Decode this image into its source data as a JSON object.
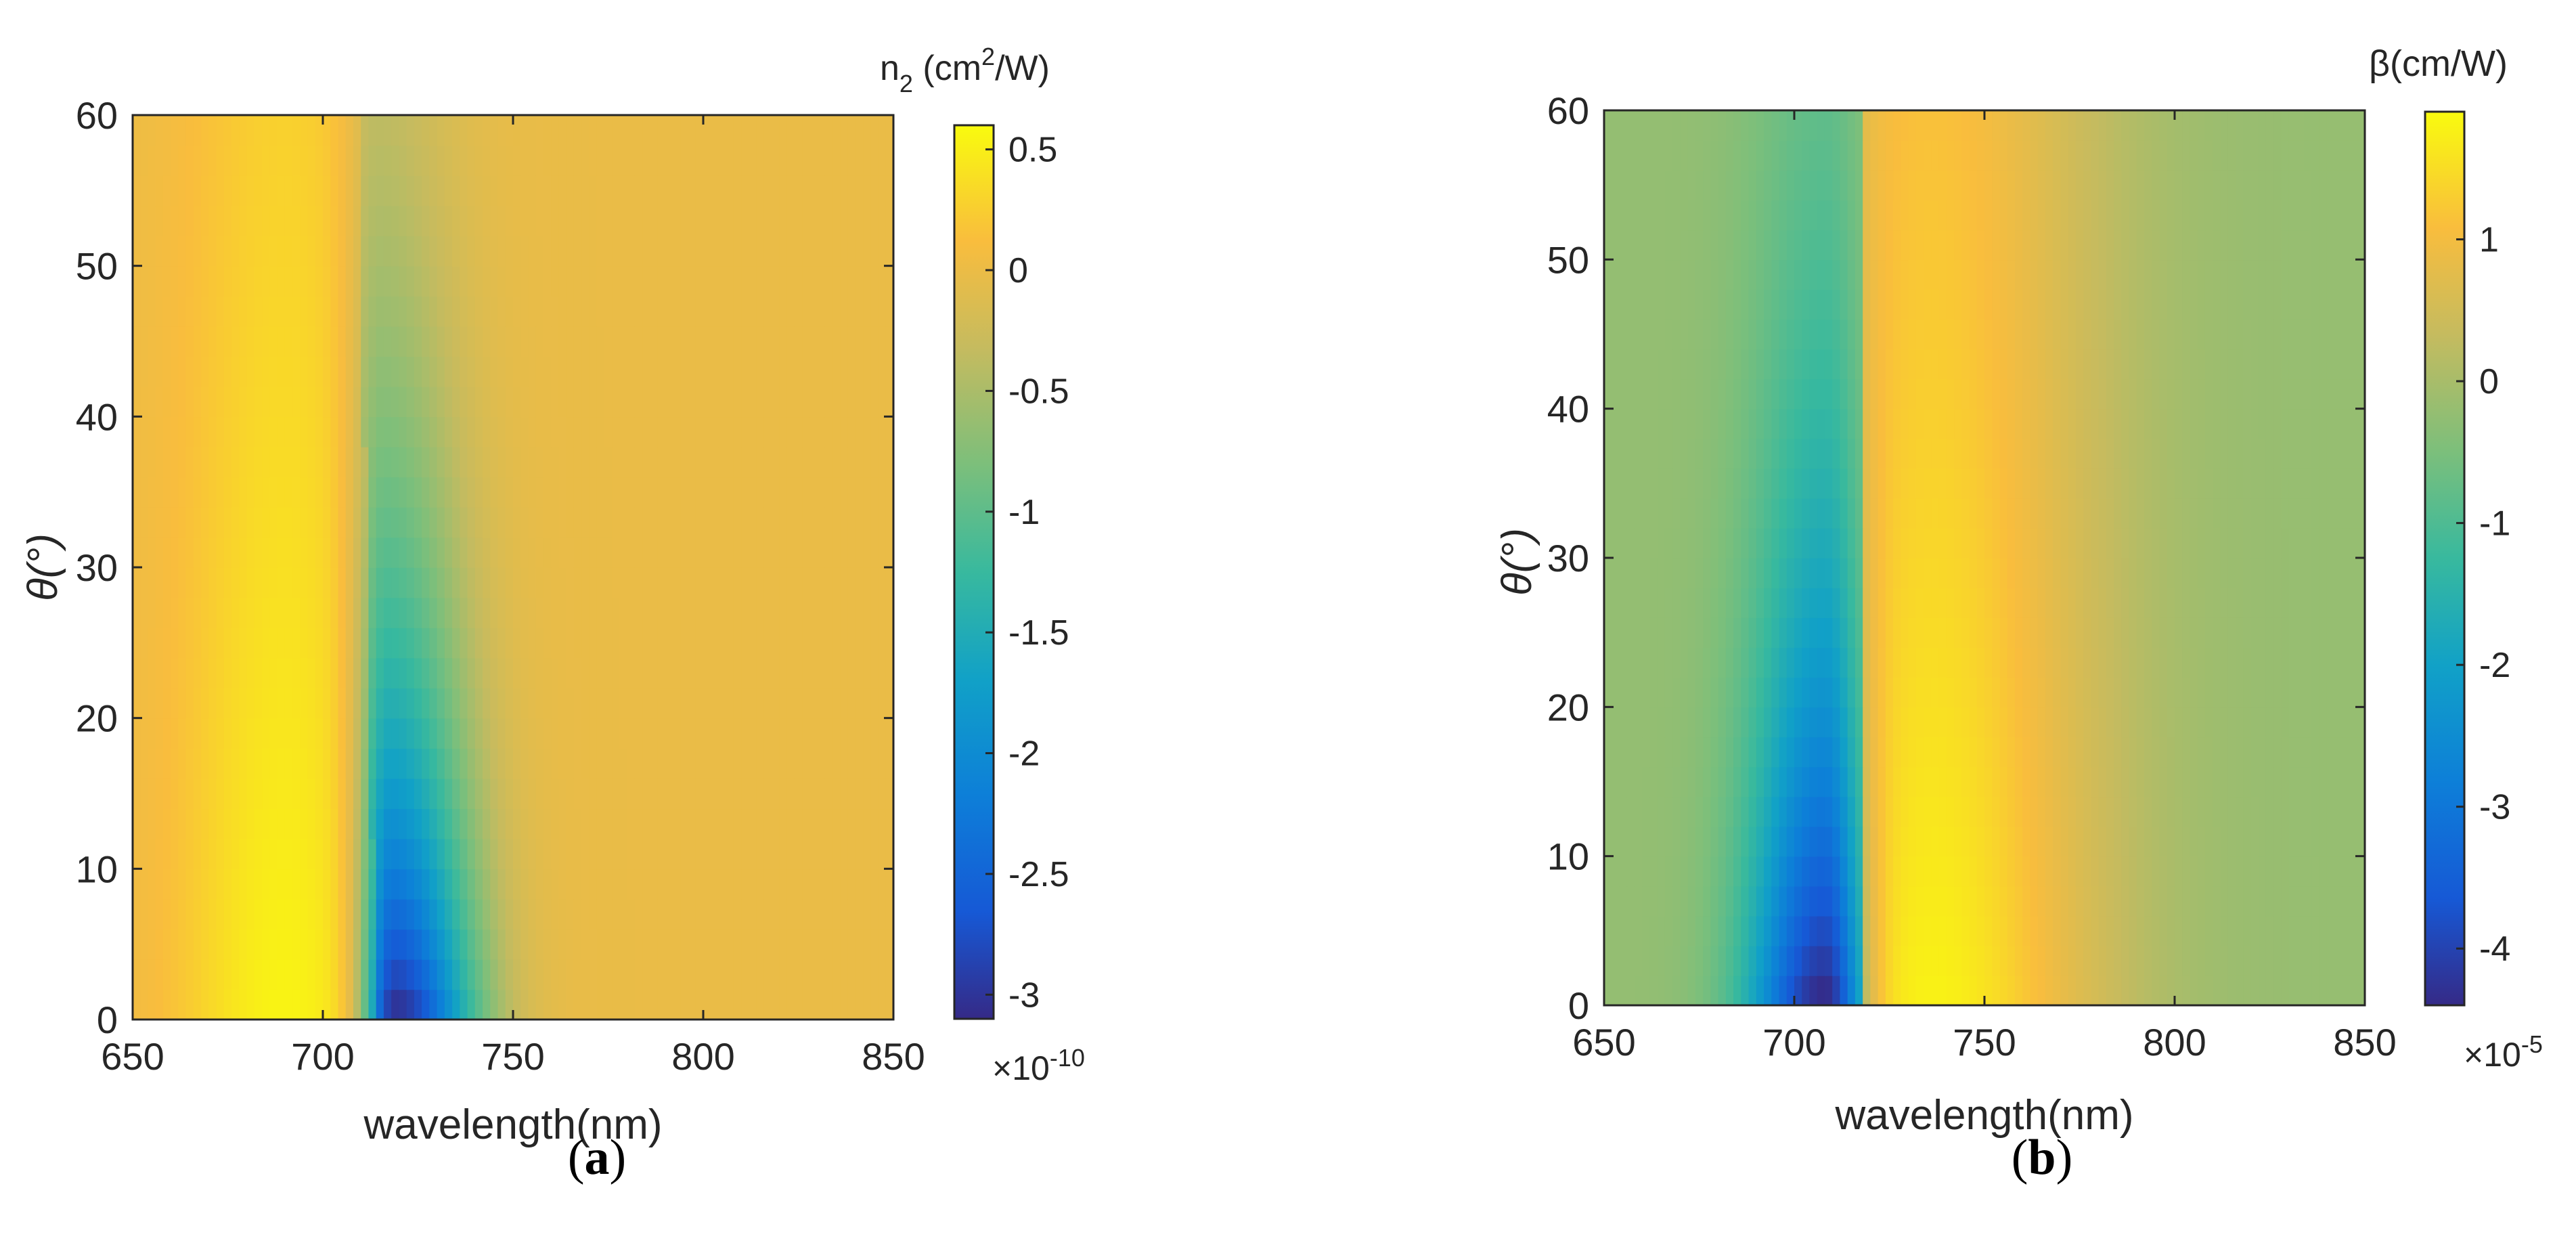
{
  "chart_data": [
    {
      "type": "heatmap",
      "panel_label": "a",
      "xlabel": "wavelength(nm)",
      "ylabel": "θ(°)",
      "xlim": [
        650,
        850
      ],
      "ylim": [
        0,
        60
      ],
      "x_ticks": [
        650,
        700,
        750,
        800,
        850
      ],
      "y_ticks": [
        0,
        10,
        20,
        30,
        40,
        50,
        60
      ],
      "colorbar": {
        "title_main": "n",
        "title_sub": "2",
        "title_rest": " (cm",
        "title_sup": "2",
        "title_end": "/W)",
        "scale_text": "×10",
        "scale_exp": "-10",
        "range": [
          -3.1,
          0.6
        ],
        "ticks": [
          0.5,
          0,
          -0.5,
          -1,
          -1.5,
          -2,
          -2.5,
          -3
        ]
      },
      "features": [
        {
          "kind": "minimum",
          "wavelength": 719,
          "theta": 0,
          "value": -3.05
        },
        {
          "kind": "maximum",
          "wavelength": 690,
          "theta": 0,
          "value": 0.55
        },
        {
          "kind": "background",
          "value": 0.0
        }
      ]
    },
    {
      "type": "heatmap",
      "panel_label": "b",
      "xlabel": "wavelength(nm)",
      "ylabel": "θ(°)",
      "xlim": [
        650,
        850
      ],
      "ylim": [
        0,
        60
      ],
      "x_ticks": [
        650,
        700,
        750,
        800,
        850
      ],
      "y_ticks": [
        0,
        10,
        20,
        30,
        40,
        50,
        60
      ],
      "colorbar": {
        "title_main": "β(cm/W)",
        "scale_text": "×10",
        "scale_exp": "-5",
        "range": [
          -4.4,
          1.9
        ],
        "ticks": [
          1,
          0,
          -1,
          -2,
          -3,
          -4
        ]
      },
      "features": [
        {
          "kind": "minimum",
          "wavelength": 708,
          "theta": 0,
          "value": -4.3
        },
        {
          "kind": "maximum",
          "wavelength": 737,
          "theta": 0,
          "value": 1.85
        },
        {
          "kind": "background",
          "value": -0.1
        }
      ]
    }
  ]
}
